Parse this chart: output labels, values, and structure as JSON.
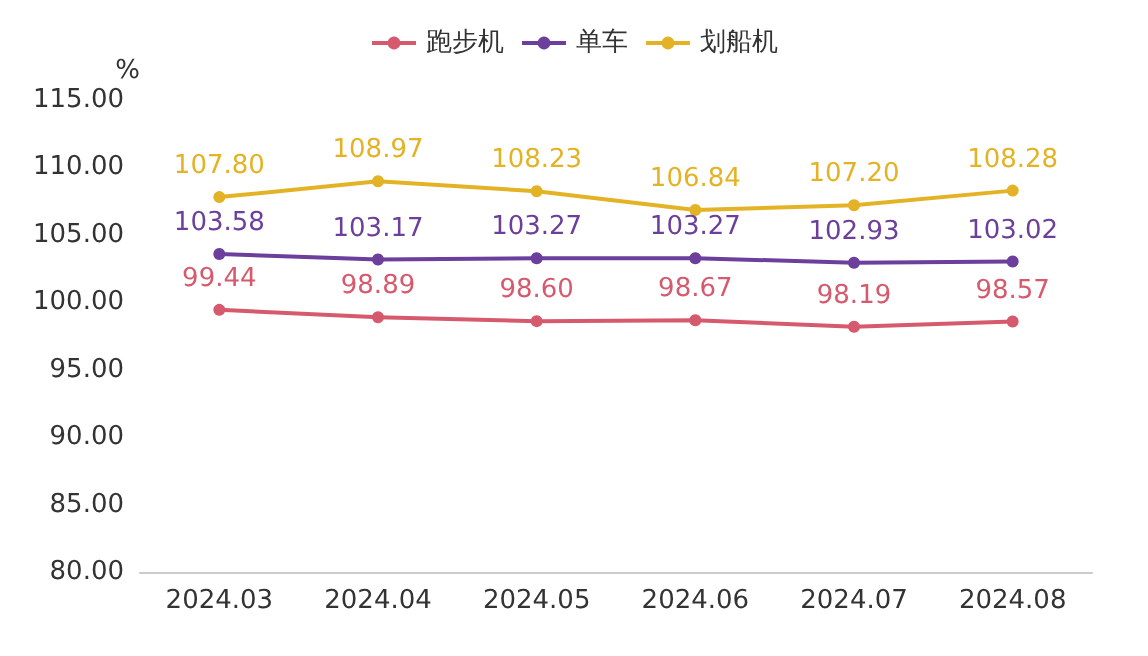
{
  "chart_data": {
    "type": "line",
    "ylabel": "%",
    "categories": [
      "2024.03",
      "2024.04",
      "2024.05",
      "2024.06",
      "2024.07",
      "2024.08"
    ],
    "series": [
      {
        "name": "跑步机",
        "color": "#d65a6e",
        "values": [
          99.44,
          98.89,
          98.6,
          98.67,
          98.19,
          98.57
        ],
        "value_labels": [
          "99.44",
          "98.89",
          "98.60",
          "98.67",
          "98.19",
          "98.57"
        ]
      },
      {
        "name": "单车",
        "color": "#6c3f9c",
        "values": [
          103.58,
          103.17,
          103.27,
          103.27,
          102.93,
          103.02
        ],
        "value_labels": [
          "103.58",
          "103.17",
          "103.27",
          "103.27",
          "102.93",
          "103.02"
        ]
      },
      {
        "name": "划船机",
        "color": "#e3b325",
        "values": [
          107.8,
          108.97,
          108.23,
          106.84,
          107.2,
          108.28
        ],
        "value_labels": [
          "107.80",
          "108.97",
          "108.23",
          "106.84",
          "107.20",
          "108.28"
        ]
      }
    ],
    "ylim": [
      80,
      115
    ],
    "yticks": [
      {
        "value": 80,
        "label": "80.00"
      },
      {
        "value": 85,
        "label": "85.00"
      },
      {
        "value": 90,
        "label": "90.00"
      },
      {
        "value": 95,
        "label": "95.00"
      },
      {
        "value": 100,
        "label": "100.00"
      },
      {
        "value": 105,
        "label": "105.00"
      },
      {
        "value": 110,
        "label": "110.00"
      },
      {
        "value": 115,
        "label": "115.00"
      }
    ],
    "grid": false,
    "legend": "top",
    "marker": "circle",
    "line_style": "solid"
  }
}
